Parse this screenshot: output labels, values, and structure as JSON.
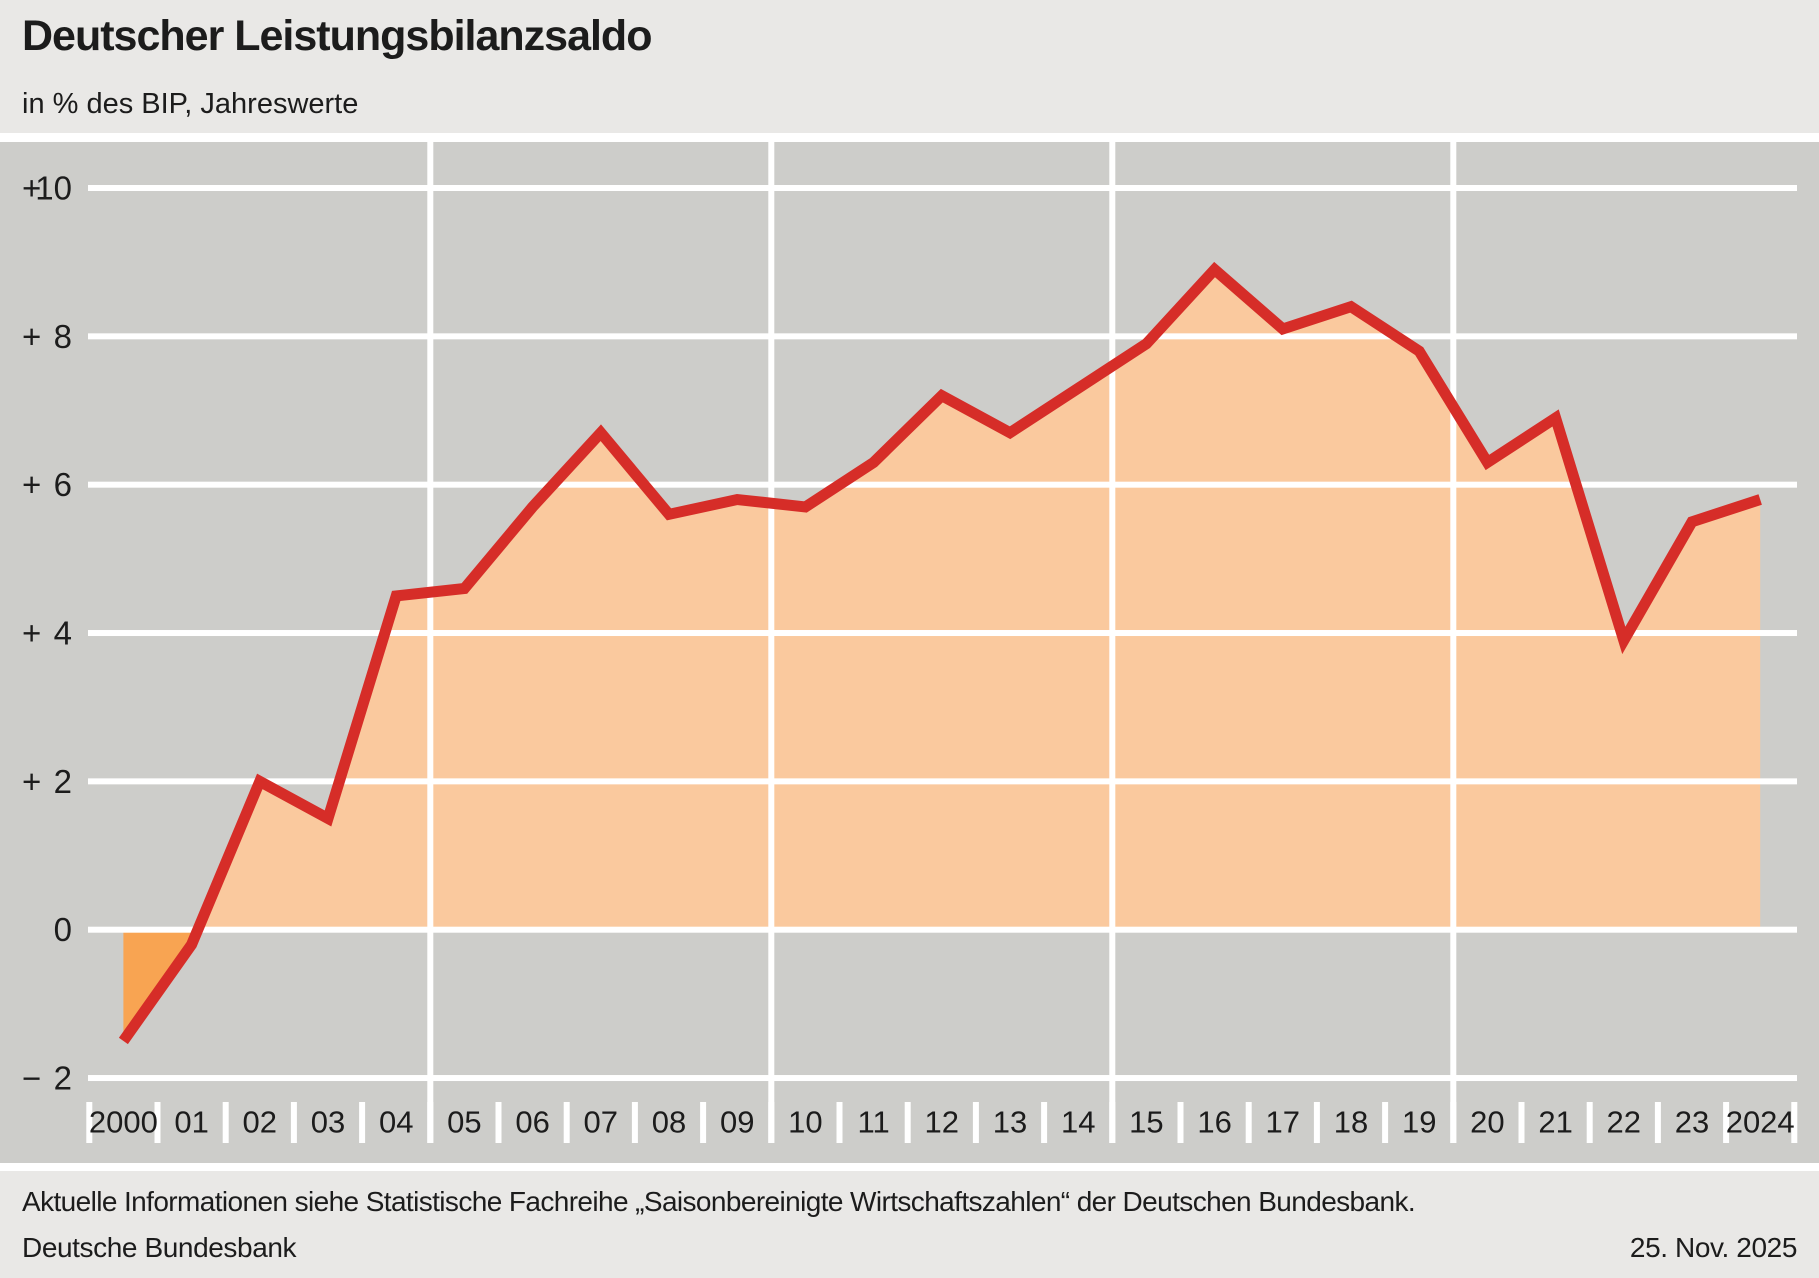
{
  "header": {
    "title": "Deutscher Leistungsbilanzsaldo",
    "subtitle": "in % des BIP, Jahreswerte"
  },
  "footer": {
    "note": "Aktuelle Informationen siehe Statistische Fachreihe „Saisonbereinigte Wirtschaftszahlen“ der Deutschen Bundesbank.",
    "source": "Deutsche Bundesbank",
    "date": "25. Nov. 2025"
  },
  "chart_data": {
    "type": "area",
    "title": "Deutscher Leistungsbilanzsaldo",
    "subtitle": "in % des BIP, Jahreswerte",
    "unit": "% des BIP",
    "x": [
      2000,
      2001,
      2002,
      2003,
      2004,
      2005,
      2006,
      2007,
      2008,
      2009,
      2010,
      2011,
      2012,
      2013,
      2014,
      2015,
      2016,
      2017,
      2018,
      2019,
      2020,
      2021,
      2022,
      2023,
      2024
    ],
    "values": [
      -1.5,
      -0.2,
      2.0,
      1.5,
      4.5,
      4.6,
      5.7,
      6.7,
      5.6,
      5.8,
      5.7,
      6.3,
      7.2,
      6.7,
      7.3,
      7.9,
      8.9,
      8.1,
      8.4,
      7.8,
      6.3,
      6.9,
      3.9,
      5.5,
      5.8
    ],
    "x_tick_labels": [
      "2000",
      "01",
      "02",
      "03",
      "04",
      "05",
      "06",
      "07",
      "08",
      "09",
      "10",
      "11",
      "12",
      "13",
      "14",
      "15",
      "16",
      "17",
      "18",
      "19",
      "20",
      "21",
      "22",
      "23",
      "2024"
    ],
    "y_ticks": [
      10,
      8,
      6,
      4,
      2,
      0,
      -2
    ],
    "y_tick_labels": [
      "+10",
      "+ 8",
      "+ 6",
      "+ 4",
      "+ 2",
      "0",
      "− 2"
    ],
    "ylim": [
      -2,
      10
    ],
    "grid": true,
    "vertical_gridline_boundaries": [
      "2004|05",
      "2009|10",
      "2014|15",
      "2019|20"
    ],
    "legend": "none",
    "colors": {
      "line": "#d62d28",
      "area_positive": "#fac99e",
      "area_negative": "#f8a452",
      "plot_background": "#cdcdca",
      "page_background": "#e9e8e6",
      "gridline": "#ffffff",
      "text": "#1c1c1c"
    }
  }
}
